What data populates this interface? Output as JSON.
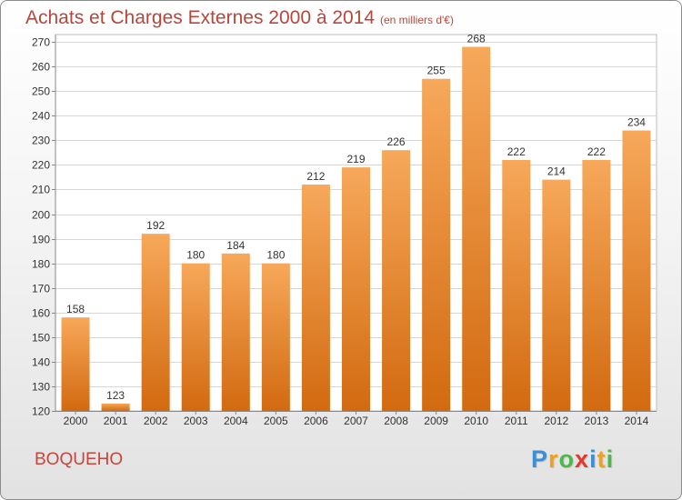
{
  "chart_data": {
    "type": "bar",
    "title": "Achats et Charges Externes 2000 à 2014",
    "subtitle": "(en milliers d'€)",
    "categories": [
      "2000",
      "2001",
      "2002",
      "2003",
      "2004",
      "2005",
      "2006",
      "2007",
      "2008",
      "2009",
      "2010",
      "2011",
      "2012",
      "2013",
      "2014"
    ],
    "values": [
      158,
      123,
      192,
      180,
      184,
      180,
      212,
      219,
      226,
      255,
      268,
      222,
      214,
      222,
      234
    ],
    "data_labels": [
      "158",
      "123",
      "192",
      "180",
      "184",
      "180",
      "212",
      "219",
      "226",
      "255",
      "268",
      "222",
      "214",
      "222",
      "234"
    ],
    "yticks": [
      "120",
      "130",
      "140",
      "150",
      "160",
      "170",
      "180",
      "190",
      "200",
      "210",
      "220",
      "230",
      "240",
      "250",
      "260",
      "270"
    ],
    "ylim": [
      120,
      273
    ],
    "grid": true,
    "legend": "none",
    "bar_color": "#e8801e",
    "bar_color_light": "#f7a85a",
    "bar_color_dark": "#d26a10"
  },
  "footer": {
    "commune": "BOQUEHO",
    "logo": [
      "P",
      "r",
      "o",
      "x",
      "i",
      "t",
      "i"
    ],
    "logo_colors": [
      "#3a8fd6",
      "#f0a020",
      "#4db848",
      "#e03a2a",
      "#3a8fd6",
      "#f0a020",
      "#4db848"
    ]
  }
}
